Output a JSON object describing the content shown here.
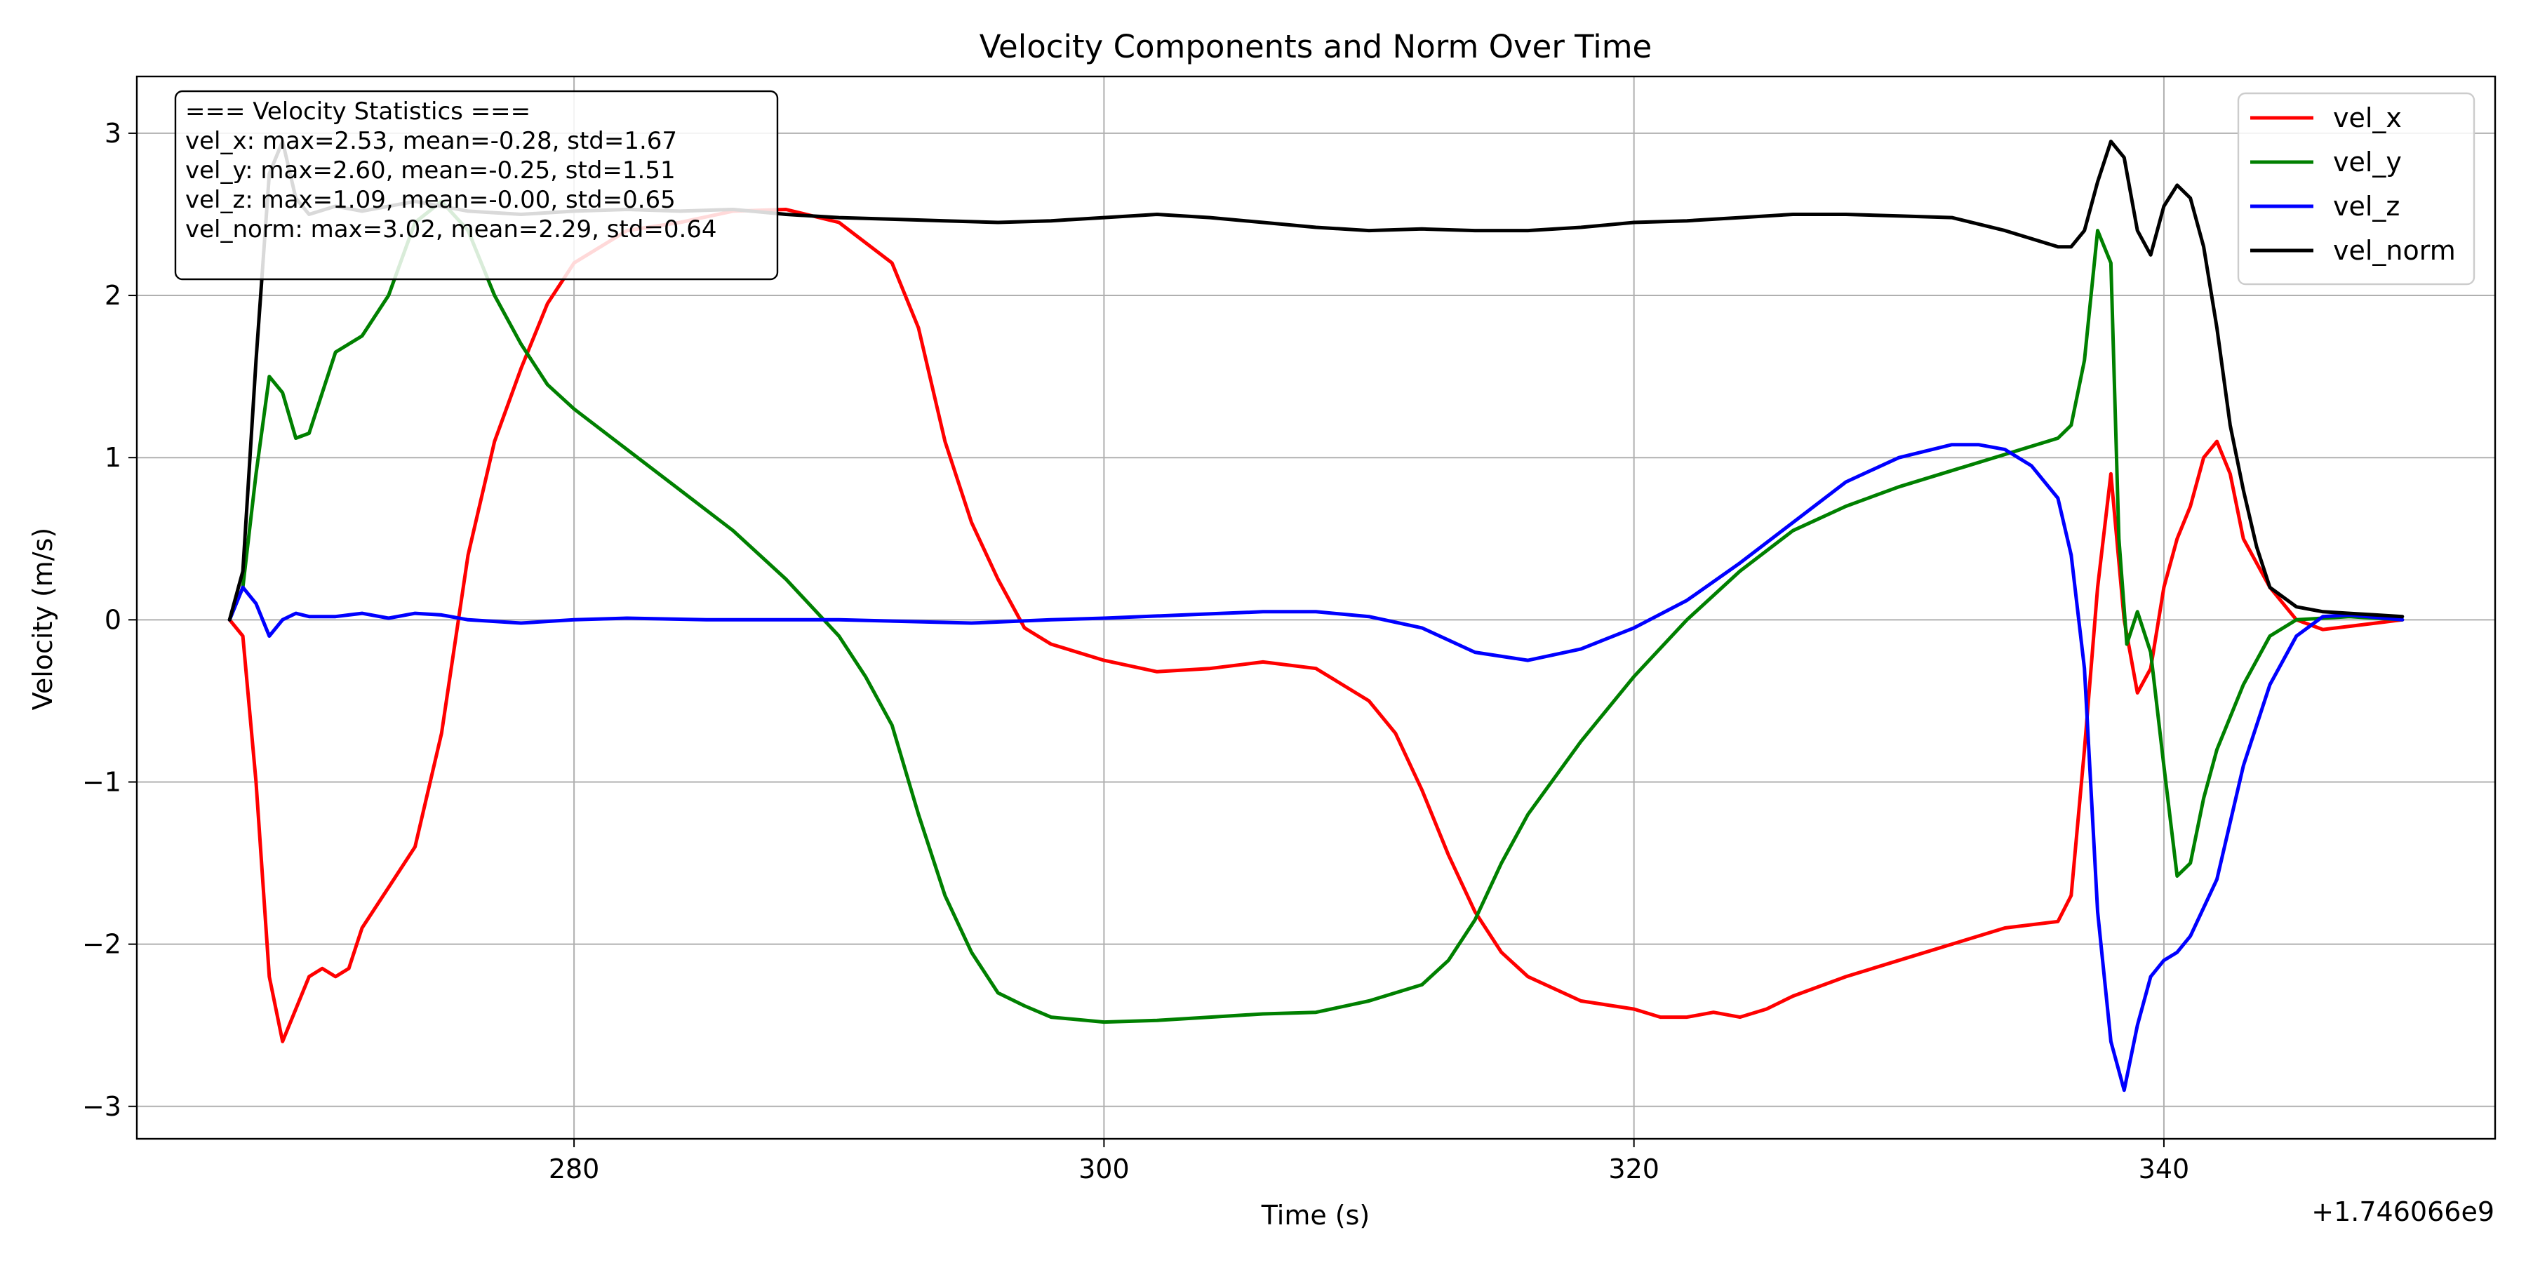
{
  "chart_data": {
    "type": "line",
    "title": "Velocity Components and Norm Over Time",
    "xlabel": "Time (s)",
    "ylabel": "Velocity (m/s)",
    "x_offset_label": "+1.746066e9",
    "xlim": [
      263.5,
      352.5
    ],
    "ylim": [
      -3.2,
      3.35
    ],
    "xticks": [
      280,
      300,
      320,
      340
    ],
    "xtick_labels": [
      "280",
      "300",
      "320",
      "340"
    ],
    "yticks": [
      -3,
      -2,
      -1,
      0,
      1,
      2,
      3
    ],
    "ytick_labels": [
      "−3",
      "−2",
      "−1",
      "0",
      "1",
      "2",
      "3"
    ],
    "grid": true,
    "legend_position": "top-right",
    "stats_box": [
      "=== Velocity Statistics ===",
      "vel_x: max=2.53, mean=-0.28, std=1.67",
      "vel_y: max=2.60, mean=-0.25, std=1.51",
      "vel_z: max=1.09, mean=-0.00, std=0.65",
      "vel_norm: max=3.02, mean=2.29, std=0.64"
    ],
    "series": [
      {
        "name": "vel_x",
        "color": "#ff0000",
        "points": [
          [
            267,
            0
          ],
          [
            267.5,
            -0.1
          ],
          [
            268,
            -1.0
          ],
          [
            268.5,
            -2.2
          ],
          [
            269,
            -2.6
          ],
          [
            269.5,
            -2.4
          ],
          [
            270,
            -2.2
          ],
          [
            270.5,
            -2.15
          ],
          [
            271,
            -2.2
          ],
          [
            271.5,
            -2.15
          ],
          [
            272,
            -1.9
          ],
          [
            273,
            -1.65
          ],
          [
            274,
            -1.4
          ],
          [
            275,
            -0.7
          ],
          [
            276,
            0.4
          ],
          [
            277,
            1.1
          ],
          [
            278,
            1.55
          ],
          [
            279,
            1.95
          ],
          [
            280,
            2.2
          ],
          [
            282,
            2.4
          ],
          [
            284,
            2.45
          ],
          [
            286,
            2.52
          ],
          [
            288,
            2.53
          ],
          [
            290,
            2.45
          ],
          [
            292,
            2.2
          ],
          [
            293,
            1.8
          ],
          [
            294,
            1.1
          ],
          [
            295,
            0.6
          ],
          [
            296,
            0.25
          ],
          [
            297,
            -0.05
          ],
          [
            298,
            -0.15
          ],
          [
            300,
            -0.25
          ],
          [
            302,
            -0.32
          ],
          [
            304,
            -0.3
          ],
          [
            306,
            -0.26
          ],
          [
            308,
            -0.3
          ],
          [
            310,
            -0.5
          ],
          [
            311,
            -0.7
          ],
          [
            312,
            -1.05
          ],
          [
            313,
            -1.45
          ],
          [
            314,
            -1.8
          ],
          [
            315,
            -2.05
          ],
          [
            316,
            -2.2
          ],
          [
            318,
            -2.35
          ],
          [
            320,
            -2.4
          ],
          [
            321,
            -2.45
          ],
          [
            322,
            -2.45
          ],
          [
            323,
            -2.42
          ],
          [
            324,
            -2.45
          ],
          [
            325,
            -2.4
          ],
          [
            326,
            -2.32
          ],
          [
            328,
            -2.2
          ],
          [
            330,
            -2.1
          ],
          [
            332,
            -2.0
          ],
          [
            334,
            -1.9
          ],
          [
            336,
            -1.86
          ],
          [
            336.5,
            -1.7
          ],
          [
            337,
            -0.8
          ],
          [
            337.5,
            0.2
          ],
          [
            338,
            0.9
          ],
          [
            338.5,
            0.0
          ],
          [
            339,
            -0.45
          ],
          [
            339.5,
            -0.3
          ],
          [
            340,
            0.2
          ],
          [
            340.5,
            0.5
          ],
          [
            341,
            0.7
          ],
          [
            341.5,
            1.0
          ],
          [
            342,
            1.1
          ],
          [
            342.5,
            0.9
          ],
          [
            343,
            0.5
          ],
          [
            344,
            0.2
          ],
          [
            345,
            0.0
          ],
          [
            346,
            -0.06
          ],
          [
            347,
            -0.04
          ],
          [
            348,
            -0.02
          ],
          [
            349,
            0.0
          ]
        ]
      },
      {
        "name": "vel_y",
        "color": "#008000",
        "points": [
          [
            267,
            0
          ],
          [
            267.5,
            0.2
          ],
          [
            268,
            0.9
          ],
          [
            268.5,
            1.5
          ],
          [
            269,
            1.4
          ],
          [
            269.5,
            1.12
          ],
          [
            270,
            1.15
          ],
          [
            270.5,
            1.4
          ],
          [
            271,
            1.65
          ],
          [
            272,
            1.75
          ],
          [
            273,
            2.0
          ],
          [
            274,
            2.45
          ],
          [
            275,
            2.58
          ],
          [
            276,
            2.4
          ],
          [
            277,
            2.0
          ],
          [
            278,
            1.7
          ],
          [
            279,
            1.45
          ],
          [
            280,
            1.3
          ],
          [
            282,
            1.05
          ],
          [
            284,
            0.8
          ],
          [
            286,
            0.55
          ],
          [
            288,
            0.25
          ],
          [
            290,
            -0.1
          ],
          [
            291,
            -0.35
          ],
          [
            292,
            -0.65
          ],
          [
            293,
            -1.2
          ],
          [
            294,
            -1.7
          ],
          [
            295,
            -2.05
          ],
          [
            296,
            -2.3
          ],
          [
            297,
            -2.38
          ],
          [
            298,
            -2.45
          ],
          [
            300,
            -2.48
          ],
          [
            302,
            -2.47
          ],
          [
            304,
            -2.45
          ],
          [
            306,
            -2.43
          ],
          [
            308,
            -2.42
          ],
          [
            310,
            -2.35
          ],
          [
            312,
            -2.25
          ],
          [
            313,
            -2.1
          ],
          [
            314,
            -1.85
          ],
          [
            315,
            -1.5
          ],
          [
            316,
            -1.2
          ],
          [
            318,
            -0.75
          ],
          [
            320,
            -0.35
          ],
          [
            322,
            0.0
          ],
          [
            324,
            0.3
          ],
          [
            326,
            0.55
          ],
          [
            328,
            0.7
          ],
          [
            330,
            0.82
          ],
          [
            332,
            0.92
          ],
          [
            334,
            1.02
          ],
          [
            336,
            1.12
          ],
          [
            336.5,
            1.2
          ],
          [
            337,
            1.6
          ],
          [
            337.5,
            2.4
          ],
          [
            338,
            2.2
          ],
          [
            338.3,
            0.5
          ],
          [
            338.6,
            -0.15
          ],
          [
            339,
            0.05
          ],
          [
            339.5,
            -0.2
          ],
          [
            340,
            -0.9
          ],
          [
            340.5,
            -1.58
          ],
          [
            341,
            -1.5
          ],
          [
            341.5,
            -1.1
          ],
          [
            342,
            -0.8
          ],
          [
            343,
            -0.4
          ],
          [
            344,
            -0.1
          ],
          [
            345,
            0.0
          ],
          [
            347,
            0.02
          ],
          [
            349,
            0.0
          ]
        ]
      },
      {
        "name": "vel_z",
        "color": "#0000ff",
        "points": [
          [
            267,
            0
          ],
          [
            267.5,
            0.2
          ],
          [
            268,
            0.1
          ],
          [
            268.5,
            -0.1
          ],
          [
            269,
            0.0
          ],
          [
            269.5,
            0.04
          ],
          [
            270,
            0.02
          ],
          [
            271,
            0.02
          ],
          [
            272,
            0.04
          ],
          [
            273,
            0.01
          ],
          [
            274,
            0.04
          ],
          [
            275,
            0.03
          ],
          [
            276,
            0.0
          ],
          [
            278,
            -0.02
          ],
          [
            280,
            0.0
          ],
          [
            282,
            0.01
          ],
          [
            285,
            0.0
          ],
          [
            290,
            0.0
          ],
          [
            295,
            -0.02
          ],
          [
            298,
            0.0
          ],
          [
            300,
            0.01
          ],
          [
            303,
            0.03
          ],
          [
            306,
            0.05
          ],
          [
            308,
            0.05
          ],
          [
            310,
            0.02
          ],
          [
            312,
            -0.05
          ],
          [
            314,
            -0.2
          ],
          [
            316,
            -0.25
          ],
          [
            318,
            -0.18
          ],
          [
            320,
            -0.05
          ],
          [
            322,
            0.12
          ],
          [
            324,
            0.35
          ],
          [
            326,
            0.6
          ],
          [
            328,
            0.85
          ],
          [
            330,
            1.0
          ],
          [
            332,
            1.08
          ],
          [
            333,
            1.08
          ],
          [
            334,
            1.05
          ],
          [
            335,
            0.95
          ],
          [
            336,
            0.75
          ],
          [
            336.5,
            0.4
          ],
          [
            337,
            -0.3
          ],
          [
            337.5,
            -1.8
          ],
          [
            338,
            -2.6
          ],
          [
            338.5,
            -2.9
          ],
          [
            339,
            -2.5
          ],
          [
            339.5,
            -2.2
          ],
          [
            340,
            -2.1
          ],
          [
            340.5,
            -2.05
          ],
          [
            341,
            -1.95
          ],
          [
            342,
            -1.6
          ],
          [
            343,
            -0.9
          ],
          [
            344,
            -0.4
          ],
          [
            345,
            -0.1
          ],
          [
            346,
            0.02
          ],
          [
            347,
            0.03
          ],
          [
            349,
            0.0
          ]
        ]
      },
      {
        "name": "vel_norm",
        "color": "#000000",
        "points": [
          [
            267,
            0
          ],
          [
            267.5,
            0.3
          ],
          [
            268,
            1.6
          ],
          [
            268.5,
            2.75
          ],
          [
            269,
            2.95
          ],
          [
            269.5,
            2.6
          ],
          [
            270,
            2.5
          ],
          [
            271,
            2.55
          ],
          [
            272,
            2.52
          ],
          [
            273,
            2.55
          ],
          [
            274,
            2.58
          ],
          [
            276,
            2.52
          ],
          [
            278,
            2.5
          ],
          [
            280,
            2.52
          ],
          [
            282,
            2.53
          ],
          [
            284,
            2.52
          ],
          [
            286,
            2.53
          ],
          [
            288,
            2.5
          ],
          [
            290,
            2.48
          ],
          [
            292,
            2.47
          ],
          [
            294,
            2.46
          ],
          [
            296,
            2.45
          ],
          [
            298,
            2.46
          ],
          [
            300,
            2.48
          ],
          [
            302,
            2.5
          ],
          [
            304,
            2.48
          ],
          [
            306,
            2.45
          ],
          [
            308,
            2.42
          ],
          [
            310,
            2.4
          ],
          [
            312,
            2.41
          ],
          [
            314,
            2.4
          ],
          [
            316,
            2.4
          ],
          [
            318,
            2.42
          ],
          [
            320,
            2.45
          ],
          [
            322,
            2.46
          ],
          [
            324,
            2.48
          ],
          [
            326,
            2.5
          ],
          [
            328,
            2.5
          ],
          [
            330,
            2.49
          ],
          [
            332,
            2.48
          ],
          [
            334,
            2.4
          ],
          [
            336,
            2.3
          ],
          [
            336.5,
            2.3
          ],
          [
            337,
            2.4
          ],
          [
            337.5,
            2.7
          ],
          [
            338,
            2.95
          ],
          [
            338.5,
            2.85
          ],
          [
            339,
            2.4
          ],
          [
            339.5,
            2.25
          ],
          [
            340,
            2.55
          ],
          [
            340.5,
            2.68
          ],
          [
            341,
            2.6
          ],
          [
            341.5,
            2.3
          ],
          [
            342,
            1.8
          ],
          [
            342.5,
            1.2
          ],
          [
            343,
            0.8
          ],
          [
            343.5,
            0.45
          ],
          [
            344,
            0.2
          ],
          [
            345,
            0.08
          ],
          [
            346,
            0.05
          ],
          [
            347,
            0.04
          ],
          [
            348,
            0.03
          ],
          [
            349,
            0.02
          ]
        ]
      }
    ]
  }
}
